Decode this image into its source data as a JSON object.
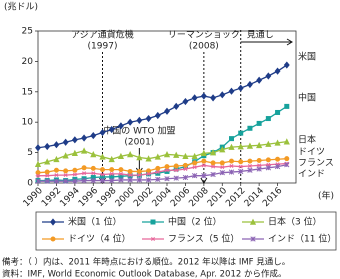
{
  "chart_data": {
    "type": "line",
    "y_label": "(兆ドル)",
    "x_label": "(年)",
    "x": [
      1990,
      1991,
      1992,
      1993,
      1994,
      1995,
      1996,
      1997,
      1998,
      1999,
      2000,
      2001,
      2002,
      2003,
      2004,
      2005,
      2006,
      2007,
      2008,
      2009,
      2010,
      2011,
      2012,
      2013,
      2014,
      2015,
      2016,
      2017
    ],
    "xlim": [
      1990,
      2018
    ],
    "xticks": [
      1990,
      1992,
      1994,
      1996,
      1998,
      2000,
      2002,
      2004,
      2006,
      2008,
      2010,
      2012,
      2014,
      2016
    ],
    "ylim": [
      0,
      25
    ],
    "yticks": [
      0,
      5,
      10,
      15,
      20,
      25
    ],
    "series": [
      {
        "name": "米国（1 位）",
        "label": "米国",
        "color": "#1f3c88",
        "marker": "diamond",
        "values": [
          5.8,
          6.0,
          6.3,
          6.7,
          7.1,
          7.4,
          7.8,
          8.3,
          8.8,
          9.4,
          10.0,
          10.3,
          10.6,
          11.1,
          11.8,
          12.6,
          13.4,
          14.0,
          14.3,
          14.0,
          14.5,
          15.1,
          15.6,
          16.2,
          16.9,
          17.6,
          18.4,
          19.4
        ]
      },
      {
        "name": "中国（2 位）",
        "label": "中国",
        "color": "#17a29c",
        "marker": "square",
        "values": [
          0.4,
          0.4,
          0.5,
          0.4,
          0.6,
          0.7,
          0.9,
          1.0,
          1.0,
          1.1,
          1.2,
          1.3,
          1.5,
          1.6,
          1.9,
          2.3,
          2.7,
          3.5,
          4.5,
          5.0,
          5.9,
          7.3,
          8.2,
          9.0,
          9.8,
          10.6,
          11.6,
          12.6
        ]
      },
      {
        "name": "日本（3 位）",
        "label": "日本",
        "color": "#9bc13c",
        "marker": "triangle",
        "values": [
          3.1,
          3.5,
          3.9,
          4.5,
          4.9,
          5.3,
          4.7,
          4.3,
          3.9,
          4.4,
          4.7,
          4.2,
          4.0,
          4.3,
          4.7,
          4.6,
          4.4,
          4.4,
          4.9,
          5.0,
          5.5,
          5.9,
          6.0,
          6.1,
          6.2,
          6.4,
          6.6,
          6.8
        ]
      },
      {
        "name": "ドイツ（4 位）",
        "label": "ドイツ",
        "color": "#f39a24",
        "marker": "circle",
        "values": [
          1.7,
          1.8,
          2.1,
          2.0,
          2.1,
          2.5,
          2.4,
          2.2,
          2.2,
          2.2,
          1.9,
          1.9,
          2.0,
          2.4,
          2.7,
          2.8,
          2.9,
          3.3,
          3.6,
          3.3,
          3.3,
          3.6,
          3.5,
          3.6,
          3.7,
          3.8,
          3.9,
          4.0
        ]
      },
      {
        "name": "フランス（5 位）",
        "label": "フランス",
        "color": "#e8679b",
        "marker": "asterisk",
        "values": [
          1.2,
          1.2,
          1.3,
          1.3,
          1.4,
          1.6,
          1.6,
          1.4,
          1.5,
          1.5,
          1.3,
          1.3,
          1.5,
          1.8,
          2.1,
          2.1,
          2.3,
          2.6,
          2.9,
          2.7,
          2.6,
          2.8,
          2.7,
          2.8,
          2.9,
          3.0,
          3.1,
          3.2
        ]
      },
      {
        "name": "インド（11 位）",
        "label": "インド",
        "color": "#8c64b4",
        "marker": "cross",
        "values": [
          0.3,
          0.3,
          0.3,
          0.3,
          0.3,
          0.4,
          0.4,
          0.4,
          0.4,
          0.5,
          0.5,
          0.5,
          0.5,
          0.6,
          0.7,
          0.8,
          0.9,
          1.2,
          1.2,
          1.4,
          1.7,
          1.8,
          1.9,
          2.1,
          2.3,
          2.5,
          2.7,
          3.0
        ]
      }
    ],
    "annotations": [
      {
        "text": "アジア通貨危機",
        "sub": "(1997)",
        "x": 1997
      },
      {
        "text": "リーマンショック",
        "sub": "(2008)",
        "x": 2008
      },
      {
        "text": "見通し",
        "x": 2012
      },
      {
        "text": "中国の WTO 加盟",
        "sub": "(2001)",
        "x": 2001
      }
    ],
    "notes": [
      "備考：（ ）内は、2011 年時点における順位。2012 年以降は IMF 見通し。",
      "資料：IMF, World Economic Outlook Database, Apr. 2012 から作成。"
    ]
  }
}
